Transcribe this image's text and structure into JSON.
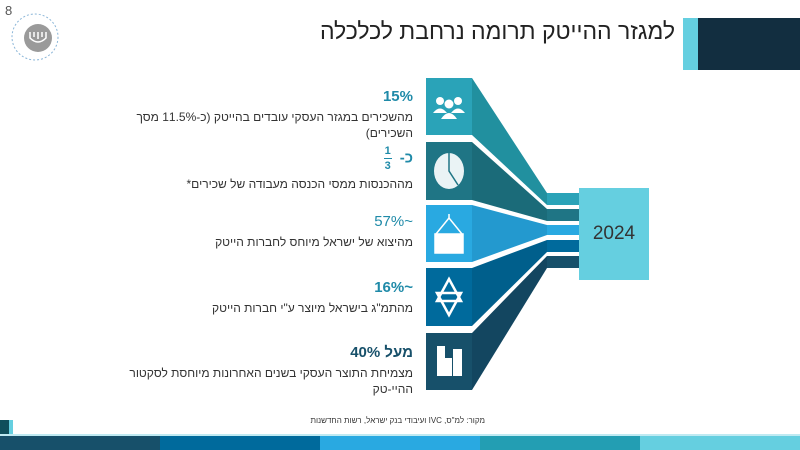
{
  "page_number": "8",
  "title": "למגזר ההייטק תרומה נרחבת לכלכלה",
  "logo_text": "בנק ישראל BANK OF ISRAEL",
  "items": [
    {
      "value": "15%",
      "description": "מהשכירים במגזר העסקי עובדים בהייטק (כ-11.5% מסך השכירים)",
      "icon": "people-icon",
      "color": "#2aa3b8"
    },
    {
      "value_prefix": "כ-",
      "value_num": "1",
      "value_den": "3",
      "description": "מההכנסות ממסי הכנסה מעבודה של שכירים*",
      "icon": "pie-chart-icon",
      "color": "#1f7585"
    },
    {
      "value": "~57%",
      "description": "מהיצוא של ישראל מיוחס לחברות הייטק",
      "icon": "cargo-crane-icon",
      "color": "#29a9e1"
    },
    {
      "value": "~16%",
      "description": "מהתמ\"ג בישראל מיוצר ע\"י חברות הייטק",
      "icon": "star-of-david-icon",
      "color": "#006a9c"
    },
    {
      "value": "מעל 40%",
      "description": "מצמיחת התוצר העסקי בשנים האחרונות מיוחסת לסקטור ההיי-טק",
      "icon": "buildings-icon",
      "color": "#17506a"
    }
  ],
  "year_box": "2024",
  "year_color": "#65cfe0",
  "source": "מקור: למ\"ס, IVC ועיבודי בנק ישראל, רשות החדשנות",
  "footer_colors": [
    "#17506a",
    "#006a9c",
    "#29a9e1",
    "#239eb3",
    "#65cfe0"
  ]
}
